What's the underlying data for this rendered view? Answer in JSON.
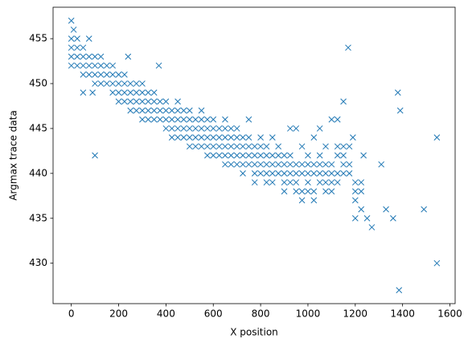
{
  "chart_data": {
    "type": "scatter",
    "color": "#1f77b4",
    "marker": "x",
    "x_label": "X position",
    "y_label": "Argmax trace data",
    "xlim": [
      -77,
      1622
    ],
    "ylim": [
      425.5,
      458.5
    ],
    "xticks": [
      0,
      200,
      400,
      600,
      800,
      1000,
      1200,
      1400,
      1600
    ],
    "yticks": [
      430,
      435,
      440,
      445,
      450,
      455
    ],
    "x": [
      0,
      0,
      0,
      0,
      25,
      25,
      25,
      25,
      50,
      50,
      50,
      50,
      75,
      75,
      75,
      75,
      100,
      100,
      100,
      100,
      125,
      125,
      125,
      125,
      150,
      150,
      150,
      175,
      175,
      175,
      175,
      200,
      200,
      200,
      200,
      225,
      225,
      225,
      225,
      250,
      250,
      250,
      250,
      275,
      275,
      275,
      275,
      300,
      300,
      300,
      300,
      300,
      325,
      325,
      325,
      325,
      350,
      350,
      350,
      350,
      375,
      375,
      375,
      400,
      400,
      400,
      400,
      425,
      425,
      425,
      425,
      450,
      450,
      450,
      450,
      450,
      475,
      475,
      475,
      475,
      500,
      500,
      500,
      500,
      500,
      525,
      525,
      525,
      525,
      550,
      550,
      550,
      550,
      550,
      575,
      575,
      575,
      575,
      575,
      600,
      600,
      600,
      600,
      600,
      625,
      625,
      625,
      625,
      650,
      650,
      650,
      650,
      650,
      650,
      675,
      675,
      675,
      675,
      675,
      700,
      700,
      700,
      700,
      700,
      725,
      725,
      725,
      725,
      725,
      750,
      750,
      750,
      750,
      750,
      775,
      775,
      775,
      775,
      775,
      800,
      800,
      800,
      800,
      800,
      825,
      825,
      825,
      825,
      825,
      850,
      850,
      850,
      850,
      850,
      875,
      875,
      875,
      875,
      900,
      900,
      900,
      900,
      900,
      925,
      925,
      925,
      925,
      925,
      950,
      950,
      950,
      950,
      950,
      975,
      975,
      975,
      975,
      975,
      1000,
      1000,
      1000,
      1000,
      1000,
      1025,
      1025,
      1025,
      1025,
      1025,
      1050,
      1050,
      1050,
      1050,
      1050,
      1075,
      1075,
      1075,
      1075,
      1075,
      1100,
      1100,
      1100,
      1100,
      1100,
      1125,
      1125,
      1125,
      1125,
      1125,
      1150,
      1150,
      1150,
      1150,
      1175,
      1175,
      1175,
      1200,
      1200,
      1200,
      1200,
      1225,
      1225,
      1225,
      0,
      10,
      100,
      1170,
      1380,
      1390,
      1545,
      1490,
      1545,
      1385,
      1360,
      1330,
      1270,
      1250,
      1310,
      1235,
      1190,
      1150,
      370,
      240,
      50,
      90
    ],
    "y": [
      452,
      453,
      454,
      455,
      452,
      453,
      454,
      455,
      451,
      452,
      453,
      454,
      451,
      452,
      453,
      455,
      450,
      451,
      452,
      453,
      450,
      451,
      452,
      453,
      450,
      451,
      452,
      449,
      450,
      451,
      452,
      448,
      449,
      450,
      451,
      448,
      449,
      450,
      451,
      447,
      448,
      449,
      450,
      447,
      448,
      449,
      450,
      446,
      447,
      448,
      449,
      450,
      446,
      447,
      448,
      449,
      446,
      447,
      448,
      449,
      446,
      447,
      448,
      445,
      446,
      447,
      448,
      444,
      445,
      446,
      447,
      444,
      445,
      446,
      447,
      448,
      444,
      445,
      446,
      447,
      443,
      444,
      445,
      446,
      447,
      443,
      444,
      445,
      446,
      443,
      444,
      445,
      446,
      447,
      442,
      443,
      444,
      445,
      446,
      442,
      443,
      444,
      445,
      446,
      442,
      443,
      444,
      445,
      441,
      442,
      443,
      444,
      445,
      446,
      441,
      442,
      443,
      444,
      445,
      441,
      442,
      443,
      444,
      445,
      440,
      441,
      442,
      443,
      444,
      441,
      442,
      443,
      444,
      446,
      439,
      440,
      441,
      442,
      443,
      440,
      441,
      442,
      443,
      444,
      439,
      440,
      441,
      442,
      443,
      439,
      440,
      441,
      442,
      444,
      440,
      441,
      442,
      443,
      438,
      439,
      440,
      441,
      442,
      439,
      440,
      441,
      442,
      445,
      438,
      439,
      440,
      441,
      445,
      437,
      438,
      440,
      441,
      443,
      438,
      439,
      440,
      441,
      442,
      437,
      438,
      440,
      441,
      444,
      439,
      440,
      441,
      442,
      445,
      438,
      439,
      440,
      441,
      443,
      438,
      439,
      440,
      441,
      446,
      439,
      440,
      442,
      443,
      446,
      440,
      441,
      442,
      443,
      440,
      441,
      443,
      435,
      437,
      438,
      439,
      436,
      438,
      439,
      457,
      456,
      442,
      454,
      449,
      447,
      444,
      436,
      430,
      427,
      435,
      436,
      434,
      435,
      441,
      442,
      444,
      448,
      452,
      453,
      449,
      449
    ]
  }
}
